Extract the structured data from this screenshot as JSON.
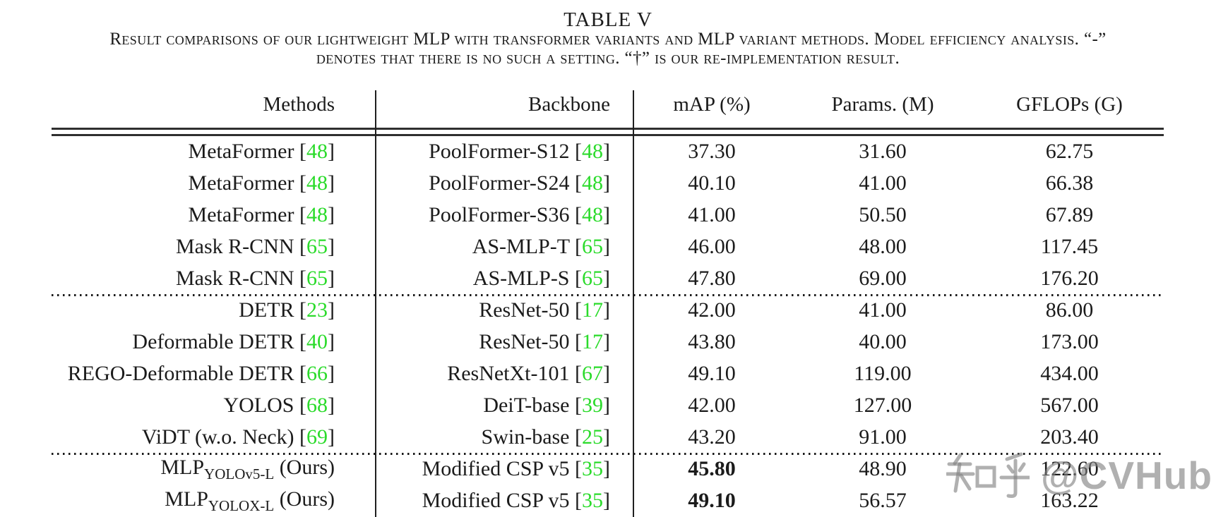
{
  "title": "TABLE V",
  "caption_line1": "Result comparisons of our lightweight MLP with transformer variants and MLP variant methods. Model efficiency analysis. “-”",
  "caption_line2": "denotes that there is no such a setting. “†” is our re-implementation result.",
  "colors": {
    "citation_green": "#2bdb2b",
    "text": "#1b1b1b",
    "watermark_gray": "#9a9a9a"
  },
  "table": {
    "headers": [
      "Methods",
      "Backbone",
      "mAP (%)",
      "Params. (M)",
      "GFLOPs (G)"
    ],
    "sections": [
      {
        "rows": [
          {
            "method": "MetaFormer",
            "method_cite": "48",
            "backbone": "PoolFormer-S12",
            "backbone_cite": "48",
            "map": "37.30",
            "map_bold": false,
            "params": "31.60",
            "gflops": "62.75"
          },
          {
            "method": "MetaFormer",
            "method_cite": "48",
            "backbone": "PoolFormer-S24",
            "backbone_cite": "48",
            "map": "40.10",
            "map_bold": false,
            "params": "41.00",
            "gflops": "66.38"
          },
          {
            "method": "MetaFormer",
            "method_cite": "48",
            "backbone": "PoolFormer-S36",
            "backbone_cite": "48",
            "map": "41.00",
            "map_bold": false,
            "params": "50.50",
            "gflops": "67.89"
          },
          {
            "method": "Mask R-CNN",
            "method_cite": "65",
            "backbone": "AS-MLP-T",
            "backbone_cite": "65",
            "map": "46.00",
            "map_bold": false,
            "params": "48.00",
            "gflops": "117.45"
          },
          {
            "method": "Mask R-CNN",
            "method_cite": "65",
            "backbone": "AS-MLP-S",
            "backbone_cite": "65",
            "map": "47.80",
            "map_bold": false,
            "params": "69.00",
            "gflops": "176.20"
          }
        ]
      },
      {
        "rows": [
          {
            "method": "DETR",
            "method_cite": "23",
            "backbone": "ResNet-50",
            "backbone_cite": "17",
            "map": "42.00",
            "map_bold": false,
            "params": "41.00",
            "gflops": "86.00"
          },
          {
            "method": "Deformable DETR",
            "method_cite": "40",
            "backbone": "ResNet-50",
            "backbone_cite": "17",
            "map": "43.80",
            "map_bold": false,
            "params": "40.00",
            "gflops": "173.00"
          },
          {
            "method": "REGO-Deformable DETR",
            "method_cite": "66",
            "backbone": "ResNetXt-101",
            "backbone_cite": "67",
            "map": "49.10",
            "map_bold": false,
            "params": "119.00",
            "gflops": "434.00"
          },
          {
            "method": "YOLOS",
            "method_cite": "68",
            "backbone": "DeiT-base",
            "backbone_cite": "39",
            "map": "42.00",
            "map_bold": false,
            "params": "127.00",
            "gflops": "567.00"
          },
          {
            "method": "ViDT (w.o. Neck)",
            "method_cite": "69",
            "backbone": "Swin-base",
            "backbone_cite": "25",
            "map": "43.20",
            "map_bold": false,
            "params": "91.00",
            "gflops": "203.40"
          }
        ]
      },
      {
        "rows": [
          {
            "method": "MLP",
            "method_sub": "YOLOv5-L",
            "method_suffix": " (Ours)",
            "backbone": "Modified CSP v5",
            "backbone_cite": "35",
            "map": "45.80",
            "map_bold": true,
            "params": "48.90",
            "gflops": "122.60"
          },
          {
            "method": "MLP",
            "method_sub": "YOLOX-L",
            "method_suffix": " (Ours)",
            "backbone": "Modified CSP v5",
            "backbone_cite": "35",
            "map": "49.10",
            "map_bold": true,
            "params": "56.57",
            "gflops": "163.22"
          }
        ]
      }
    ]
  },
  "watermark": {
    "cjk_text": "知乎",
    "latin_text": "@CVHub"
  }
}
